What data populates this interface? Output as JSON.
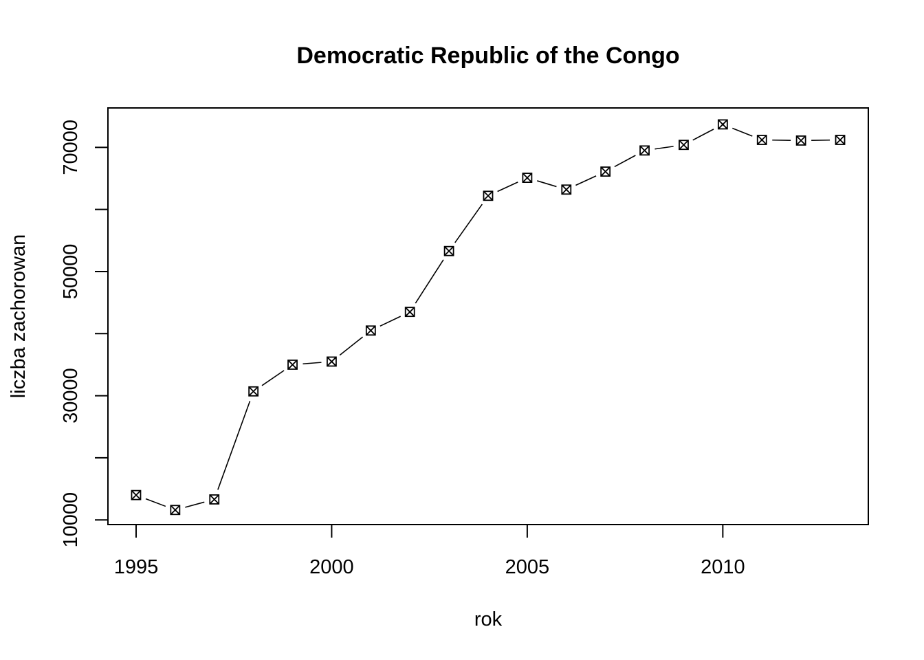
{
  "chart_data": {
    "type": "line",
    "title": "Democratic Republic of the Congo",
    "xlabel": "rok",
    "ylabel": "liczba zachorowan",
    "x": [
      1995,
      1996,
      1997,
      1998,
      1999,
      2000,
      2001,
      2002,
      2003,
      2004,
      2005,
      2006,
      2007,
      2008,
      2009,
      2010,
      2011,
      2012,
      2013
    ],
    "series": [
      {
        "values": [
          14000,
          11600,
          13300,
          30700,
          35000,
          35500,
          40500,
          43500,
          53300,
          62200,
          65100,
          63200,
          66100,
          69500,
          70400,
          73700,
          71200,
          71100,
          71200
        ]
      }
    ],
    "xlim": [
      1994.28,
      2013.72
    ],
    "ylim": [
      9250,
      76350
    ],
    "x_ticks": [
      "1995",
      "2000",
      "2005",
      "2010"
    ],
    "y_ticks": [
      "10000",
      "30000",
      "50000",
      "70000"
    ],
    "y_minor_ticks": [
      20000,
      40000,
      60000
    ],
    "marker": "box-x",
    "line_style": "segments-with-gaps",
    "grid": false,
    "legend": "none"
  }
}
